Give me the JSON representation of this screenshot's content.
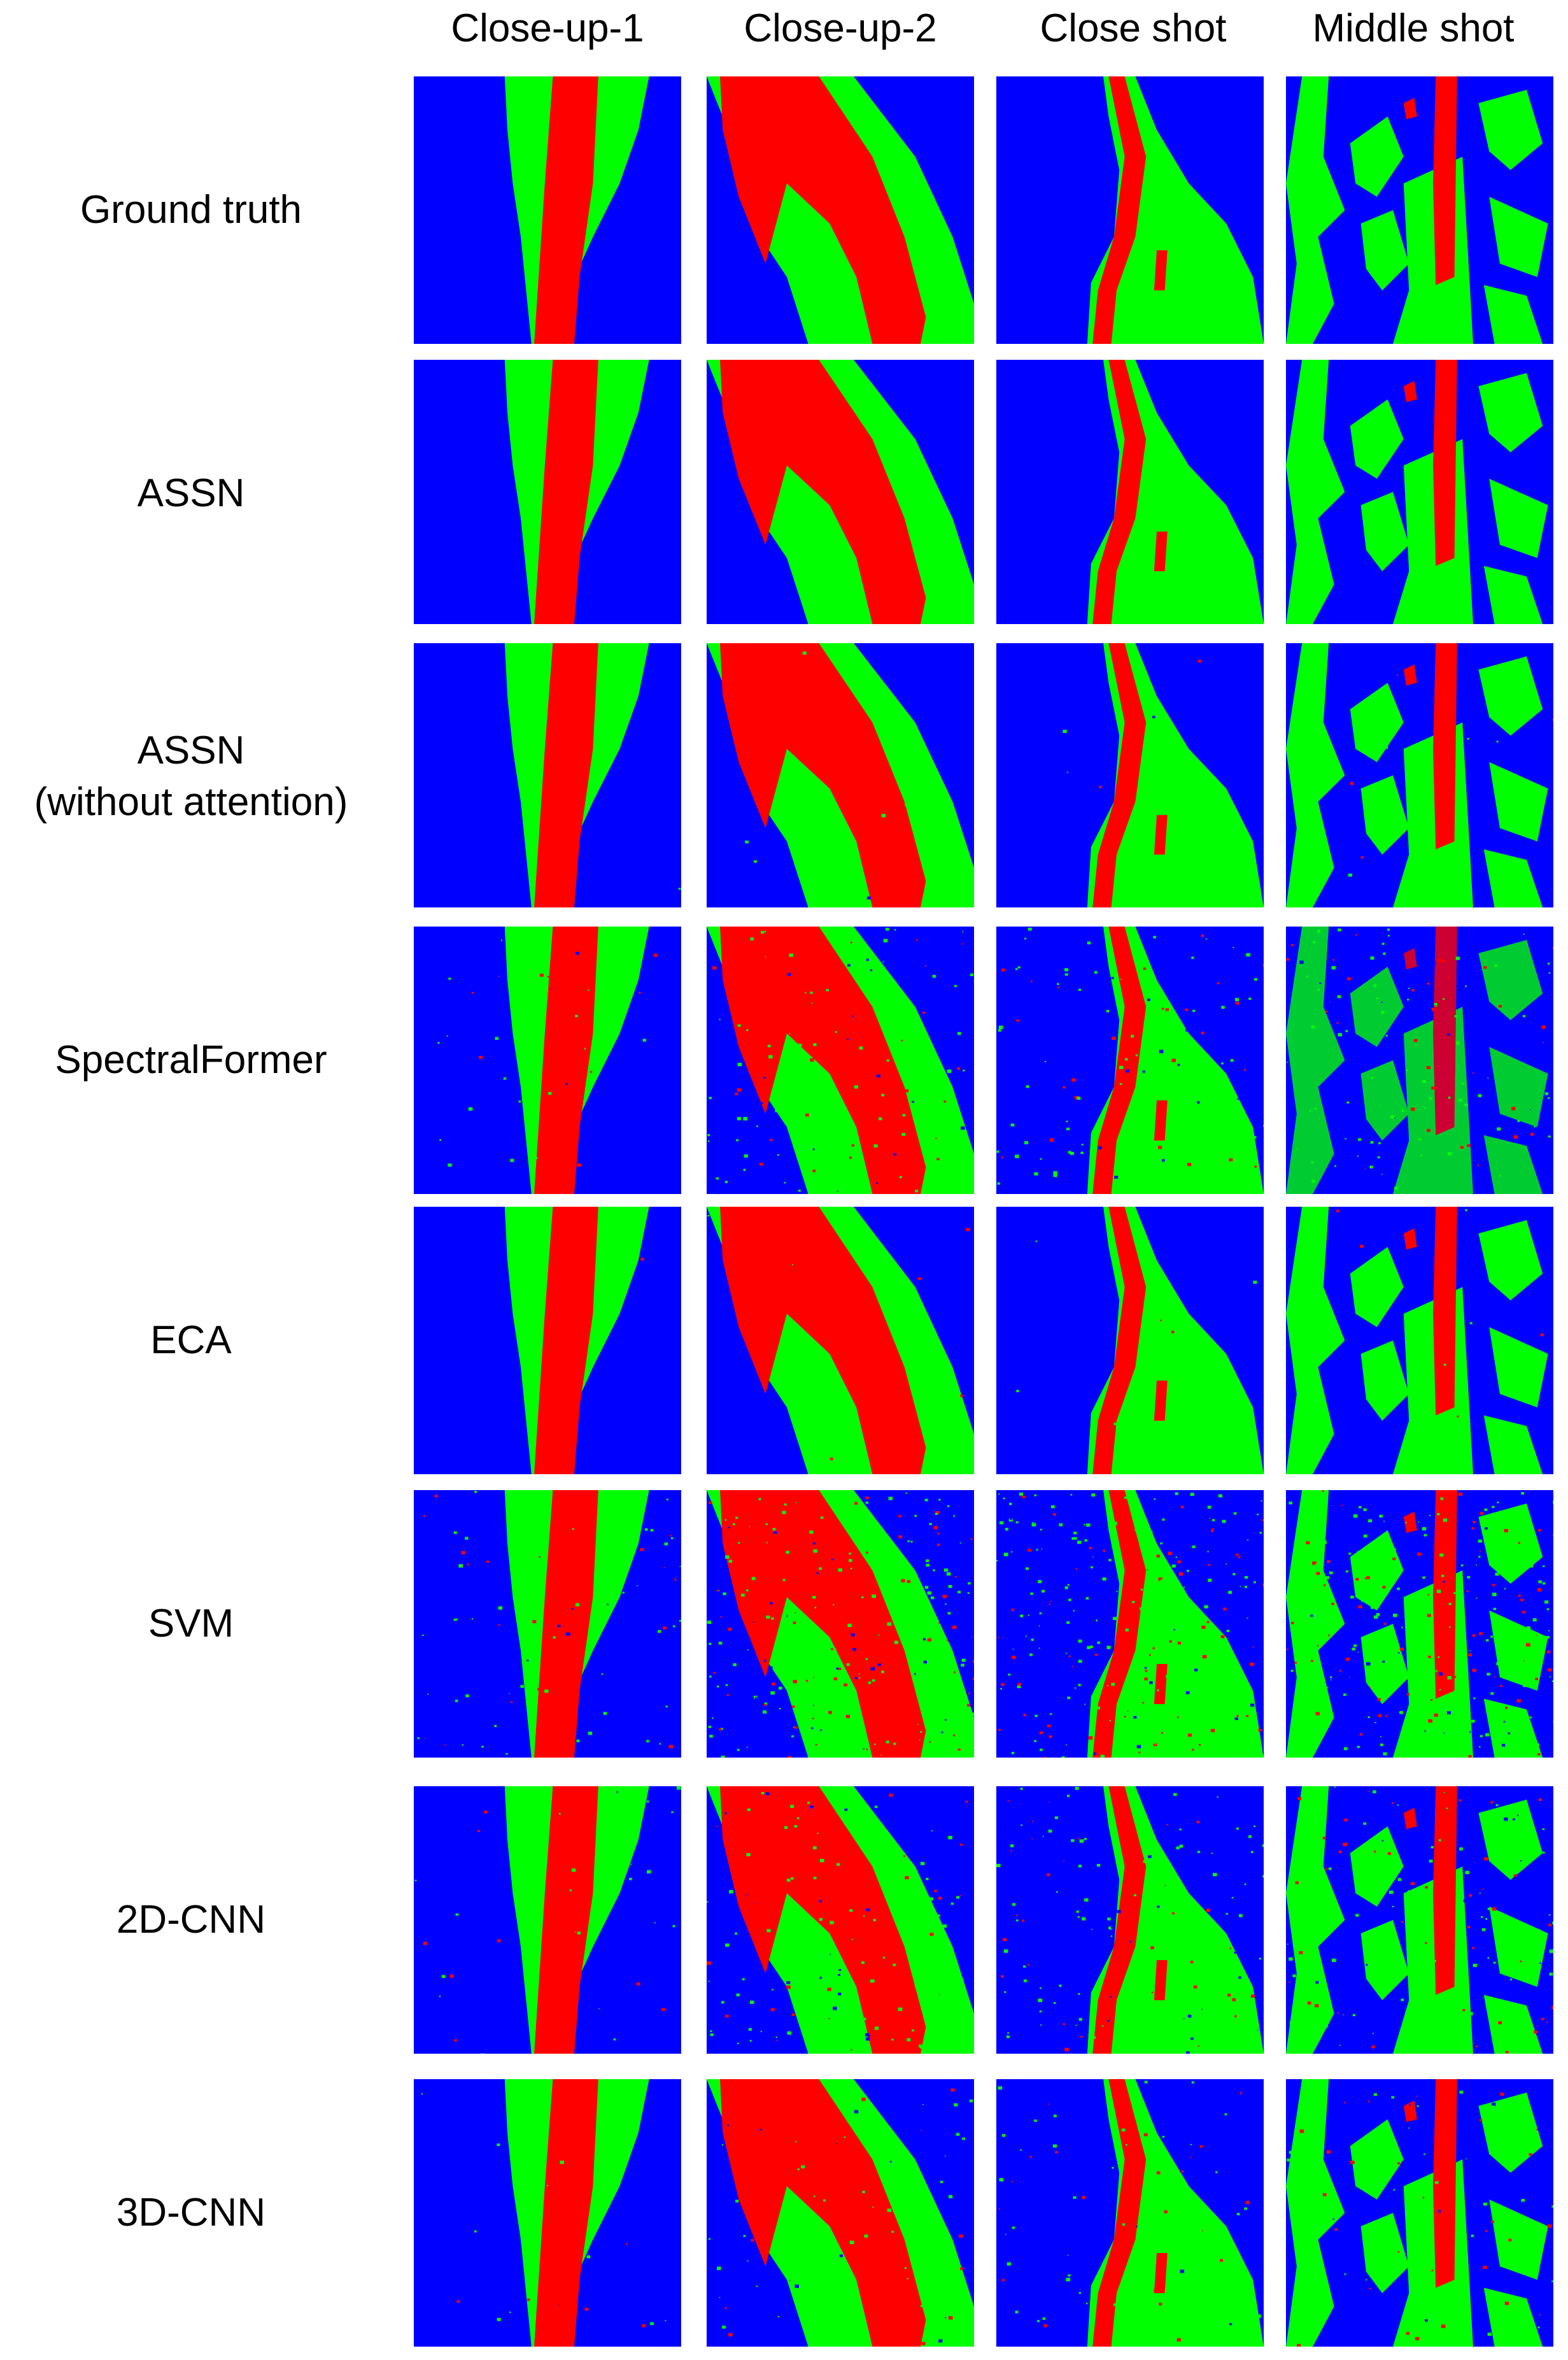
{
  "colors": {
    "background": "#0000ff",
    "leaf": "#00ff00",
    "stem": "#ff0000"
  },
  "columns": [
    "Close-up-1",
    "Close-up-2",
    "Close shot",
    "Middle shot"
  ],
  "rows": [
    {
      "label_lines": [
        "Ground truth"
      ]
    },
    {
      "label_lines": [
        "ASSN"
      ]
    },
    {
      "label_lines": [
        "ASSN",
        "(without attention)"
      ]
    },
    {
      "label_lines": [
        "SpectralFormer"
      ]
    },
    {
      "label_lines": [
        "ECA"
      ]
    },
    {
      "label_lines": [
        "SVM"
      ]
    },
    {
      "label_lines": [
        "2D-CNN"
      ]
    },
    {
      "label_lines": [
        "3D-CNN"
      ]
    }
  ]
}
